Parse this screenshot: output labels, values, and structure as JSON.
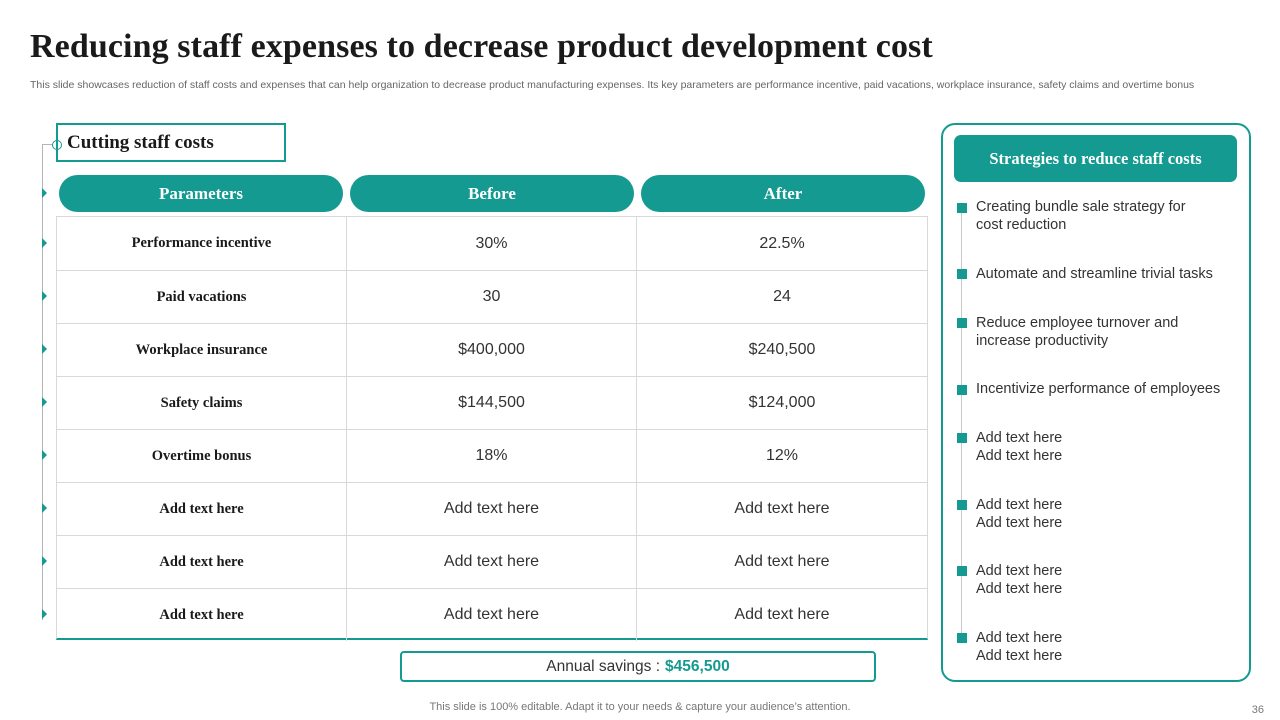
{
  "slide": {
    "title": "Reducing staff expenses to decrease product development  cost",
    "subtitle": "This slide showcases reduction of staff costs and expenses that can help organization to decrease product manufacturing expenses. Its key parameters are performance incentive, paid vacations, workplace insurance, safety claims and overtime bonus",
    "footer": "This slide is 100% editable. Adapt it to your needs & capture your audience’s attention.",
    "page_number": "36"
  },
  "section": {
    "title": "Cutting staff costs"
  },
  "table": {
    "headers": [
      "Parameters",
      "Before",
      "After"
    ],
    "rows": [
      [
        "Performance  incentive",
        "30%",
        "22.5%"
      ],
      [
        "Paid vacations",
        "30",
        "24"
      ],
      [
        "Workplace  insurance",
        "$400,000",
        "$240,500"
      ],
      [
        "Safety claims",
        "$144,500",
        "$124,000"
      ],
      [
        "Overtime  bonus",
        "18%",
        "12%"
      ],
      [
        "Add text here",
        "Add text here",
        "Add text here"
      ],
      [
        "Add text here",
        "Add text here",
        "Add text here"
      ],
      [
        "Add text here",
        "Add text here",
        "Add text here"
      ]
    ]
  },
  "savings": {
    "label": "Annual savings :",
    "amount": "$456,500"
  },
  "strategies": {
    "title": "Strategies to reduce staff costs",
    "items": [
      "Creating bundle sale strategy for\ncost reduction",
      "Automate and streamline trivial tasks",
      "Reduce employee turnover and\nincrease productivity",
      "Incentivize performance of employees",
      "Add text here\nAdd text here",
      "Add text here\nAdd text here",
      "Add text here\nAdd text here",
      "Add text here\nAdd text here"
    ]
  },
  "colors": {
    "accent": "#149a91",
    "grid": "#d9d9d9"
  }
}
